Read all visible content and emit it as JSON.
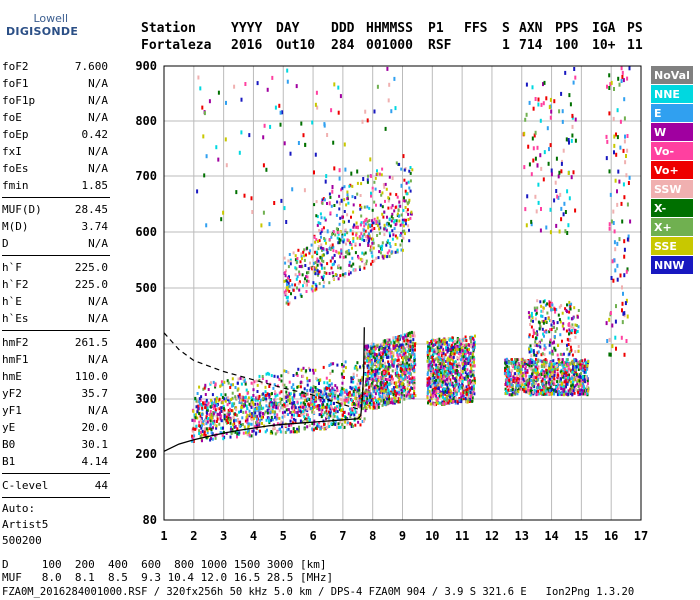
{
  "logo": {
    "top": "Lowell",
    "main": "DIGISONDE"
  },
  "header": {
    "labels": [
      "Station",
      "YYYY",
      "DAY",
      "DDD",
      "HHMMSS",
      "P1",
      "FFS",
      "S",
      "AXN",
      "PPS",
      "IGA",
      "PS"
    ],
    "values": [
      "Fortaleza",
      "2016",
      "Out10",
      "284",
      "001000",
      "RSF",
      "",
      "1",
      "714",
      "100",
      "10+",
      "11"
    ]
  },
  "params": {
    "group1": [
      {
        "name": "foF2",
        "value": "7.600"
      },
      {
        "name": "foF1",
        "value": "N/A"
      },
      {
        "name": "foF1p",
        "value": "N/A"
      },
      {
        "name": "foE",
        "value": "N/A"
      },
      {
        "name": "foEp",
        "value": "0.42"
      },
      {
        "name": "fxI",
        "value": "N/A"
      },
      {
        "name": "foEs",
        "value": "N/A"
      },
      {
        "name": "fmin",
        "value": "1.85"
      }
    ],
    "group2": [
      {
        "name": "MUF(D)",
        "value": "28.45"
      },
      {
        "name": "M(D)",
        "value": "3.74"
      },
      {
        "name": "D",
        "value": "N/A"
      }
    ],
    "group3": [
      {
        "name": "h`F",
        "value": "225.0"
      },
      {
        "name": "h`F2",
        "value": "225.0"
      },
      {
        "name": "h`E",
        "value": "N/A"
      },
      {
        "name": "h`Es",
        "value": "N/A"
      }
    ],
    "group4": [
      {
        "name": "hmF2",
        "value": "261.5"
      },
      {
        "name": "hmF1",
        "value": "N/A"
      },
      {
        "name": "hmE",
        "value": "110.0"
      },
      {
        "name": "yF2",
        "value": "35.7"
      },
      {
        "name": "yF1",
        "value": "N/A"
      },
      {
        "name": "yE",
        "value": "20.0"
      },
      {
        "name": "B0",
        "value": "30.1"
      },
      {
        "name": "B1",
        "value": "4.14"
      }
    ],
    "clevel": {
      "name": "C-level",
      "value": "44"
    },
    "auto": [
      "Auto:",
      "Artist5",
      "500200"
    ]
  },
  "footer": {
    "d_line": "D     100  200  400  600  800 1000 1500 3000 [km]",
    "muf_line": "MUF   8.0  8.1  8.5  9.3 10.4 12.0 16.5 28.5 [MHz]",
    "file_line": "FZA0M_2016284001000.RSF / 320fx256h 50 kHz 5.0 km / DPS-4 FZA0M 904 / 3.9 S 321.6 E   Ion2Png 1.3.20"
  },
  "chart_data": {
    "type": "scatter",
    "xlim": [
      1,
      17
    ],
    "ylim": [
      80,
      900
    ],
    "x_ticks": [
      "1",
      "2",
      "3",
      "4",
      "5",
      "6",
      "7",
      "8",
      "9",
      "10",
      "11",
      "12",
      "13",
      "14",
      "15",
      "16",
      "17"
    ],
    "y_ticks": [
      "80",
      "200",
      "300",
      "400",
      "500",
      "600",
      "700",
      "800",
      "900"
    ],
    "y_tick_values": [
      80,
      200,
      300,
      400,
      500,
      600,
      700,
      800,
      900
    ],
    "grid": true,
    "legend_placement": "right",
    "legend": [
      {
        "name": "NoVal",
        "color": "#808080"
      },
      {
        "name": "NNE",
        "color": "#00d8e0"
      },
      {
        "name": "E",
        "color": "#30a0f0"
      },
      {
        "name": "W",
        "color": "#a000a0"
      },
      {
        "name": "Vo-",
        "color": "#ff40a0"
      },
      {
        "name": "Vo+",
        "color": "#ee0000"
      },
      {
        "name": "SSW",
        "color": "#f0b0b0"
      },
      {
        "name": "X-",
        "color": "#007000"
      },
      {
        "name": "X+",
        "color": "#70b050"
      },
      {
        "name": "SSE",
        "color": "#c8c800"
      },
      {
        "name": "NNW",
        "color": "#1818c0"
      }
    ],
    "profile_curve": [
      [
        1.0,
        205
      ],
      [
        1.5,
        218
      ],
      [
        2.0,
        226
      ],
      [
        2.5,
        232
      ],
      [
        3.0,
        238
      ],
      [
        3.5,
        243
      ],
      [
        4.0,
        247
      ],
      [
        4.5,
        251
      ],
      [
        5.0,
        254
      ],
      [
        5.5,
        256
      ],
      [
        6.0,
        258
      ],
      [
        6.5,
        260
      ],
      [
        7.0,
        262
      ],
      [
        7.5,
        264
      ],
      [
        7.6,
        270
      ],
      [
        7.65,
        300
      ],
      [
        7.7,
        350
      ],
      [
        7.72,
        430
      ]
    ],
    "dashed_curve": [
      [
        1.0,
        420
      ],
      [
        1.5,
        390
      ],
      [
        2.0,
        370
      ],
      [
        3.0,
        350
      ],
      [
        4.0,
        335
      ],
      [
        5.0,
        320
      ],
      [
        6.0,
        307
      ],
      [
        7.0,
        290
      ],
      [
        7.5,
        282
      ]
    ],
    "echo_clusters": [
      {
        "x": [
          1.9,
          7.7
        ],
        "y": [
          225,
          300
        ],
        "slope": 5,
        "density": "high"
      },
      {
        "x": [
          2.0,
          7.7
        ],
        "y": [
          250,
          330
        ],
        "slope": 8,
        "density": "medium"
      },
      {
        "x": [
          5.0,
          9.2
        ],
        "y": [
          470,
          560
        ],
        "slope": 25,
        "density": "medium"
      },
      {
        "x": [
          6.0,
          9.3
        ],
        "y": [
          540,
          660
        ],
        "slope": 25,
        "density": "low"
      },
      {
        "x": [
          7.7,
          9.4
        ],
        "y": [
          280,
          400
        ],
        "slope": 15,
        "density": "high"
      },
      {
        "x": [
          9.8,
          11.4
        ],
        "y": [
          290,
          410
        ],
        "slope": 5,
        "density": "high"
      },
      {
        "x": [
          12.4,
          15.2
        ],
        "y": [
          310,
          375
        ],
        "slope": 0,
        "density": "high"
      },
      {
        "x": [
          13.2,
          14.9
        ],
        "y": [
          380,
          480
        ],
        "slope": 0,
        "density": "low"
      },
      {
        "x": [
          2.0,
          9.0
        ],
        "y": [
          600,
          900
        ],
        "slope": 0,
        "density": "sparse"
      },
      {
        "x": [
          13.0,
          14.8
        ],
        "y": [
          600,
          900
        ],
        "slope": 0,
        "density": "sparse"
      },
      {
        "x": [
          15.8,
          16.6
        ],
        "y": [
          380,
          900
        ],
        "slope": 0,
        "density": "sparse"
      }
    ]
  }
}
